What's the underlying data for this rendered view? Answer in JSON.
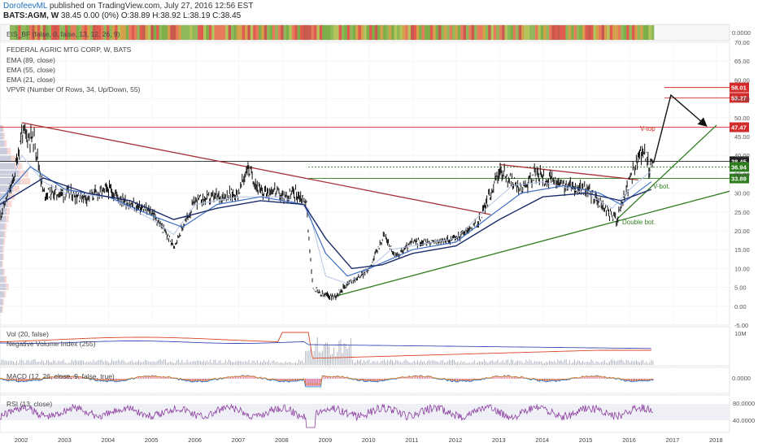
{
  "header": {
    "author": "DorofeevML",
    "published": "published on TradingView.com, July 27, 2016 12:56 EST",
    "symbol": "BATS:AGM, W",
    "quote": "38.45 0.00 (0%) O:38.89 H:38.92 L:38.19 C:38.45"
  },
  "panes": {
    "eis_label": "EIS_BF (false, 0, false, 13, 12, 26, 9)",
    "main_title": "FEDERAL AGRIC MTG CORP, W, BATS",
    "main_indicators": [
      "EMA (89, close)",
      "EMA (55, close)",
      "EMA (21, close)",
      "VPVR (Number Of Rows, 34, Up/Down, 55)"
    ],
    "vol_label": "Vol (20, false)",
    "nvi_label": "Negative Volume Index (255)",
    "macd_label": "MACD (12, 26, close, 9, false, true)",
    "rsi_label": "RSI (13, close)"
  },
  "annotations": {
    "v_top": "V-top",
    "v_bot": "V-bot.",
    "double_bot": "Double bot."
  },
  "chart_data": {
    "type": "line",
    "symbol": "BATS:AGM",
    "title": "FEDERAL AGRIC MTG CORP, W, BATS",
    "x_range": [
      2001.5,
      2018.3
    ],
    "years": [
      "2002",
      "2003",
      "2004",
      "2005",
      "2006",
      "2007",
      "2008",
      "2009",
      "2010",
      "2011",
      "2012",
      "2013",
      "2014",
      "2015",
      "2016",
      "2017",
      "2018"
    ],
    "ylim": [
      -5,
      70
    ],
    "yticks": [
      "70.00",
      "65.00",
      "60.00",
      "55.00",
      "50.00",
      "45.00",
      "40.00",
      "35.00",
      "30.00",
      "25.00",
      "20.00",
      "15.00",
      "10.00",
      "5.00",
      "0.00",
      "-5.00"
    ],
    "price": [
      [
        2001.5,
        24
      ],
      [
        2001.8,
        33
      ],
      [
        2002.0,
        46
      ],
      [
        2002.3,
        44
      ],
      [
        2002.5,
        30
      ],
      [
        2003.0,
        30
      ],
      [
        2003.5,
        29
      ],
      [
        2004.0,
        31
      ],
      [
        2004.5,
        27
      ],
      [
        2005.0,
        25
      ],
      [
        2005.5,
        16
      ],
      [
        2006.0,
        28
      ],
      [
        2006.5,
        29
      ],
      [
        2007.0,
        30
      ],
      [
        2007.2,
        37
      ],
      [
        2007.5,
        30
      ],
      [
        2007.8,
        31
      ],
      [
        2008.0,
        29
      ],
      [
        2008.3,
        30
      ],
      [
        2008.55,
        28
      ],
      [
        2008.7,
        5
      ],
      [
        2008.9,
        3
      ],
      [
        2009.2,
        2.6
      ],
      [
        2009.5,
        6
      ],
      [
        2009.8,
        8
      ],
      [
        2010.0,
        10
      ],
      [
        2010.35,
        19
      ],
      [
        2010.6,
        13
      ],
      [
        2011.0,
        17
      ],
      [
        2011.5,
        17
      ],
      [
        2012.0,
        18
      ],
      [
        2012.5,
        22
      ],
      [
        2012.8,
        30
      ],
      [
        2013.0,
        36
      ],
      [
        2013.2,
        34
      ],
      [
        2013.5,
        31
      ],
      [
        2013.8,
        35
      ],
      [
        2014.0,
        34
      ],
      [
        2014.5,
        32
      ],
      [
        2015.0,
        31
      ],
      [
        2015.5,
        25
      ],
      [
        2015.7,
        23
      ],
      [
        2015.9,
        30
      ],
      [
        2016.1,
        36
      ],
      [
        2016.3,
        42
      ],
      [
        2016.45,
        37
      ],
      [
        2016.55,
        38.45
      ]
    ],
    "ema21": [
      [
        2001.5,
        26
      ],
      [
        2002.0,
        40
      ],
      [
        2002.5,
        33
      ],
      [
        2003.0,
        30
      ],
      [
        2004.0,
        29
      ],
      [
        2005.0,
        23
      ],
      [
        2005.5,
        19
      ],
      [
        2006.0,
        27
      ],
      [
        2007.0,
        29
      ],
      [
        2008.0,
        29
      ],
      [
        2008.6,
        26
      ],
      [
        2009.0,
        8
      ],
      [
        2009.5,
        6
      ],
      [
        2010.0,
        10
      ],
      [
        2010.5,
        15
      ],
      [
        2011.0,
        16
      ],
      [
        2012.0,
        18
      ],
      [
        2012.8,
        27
      ],
      [
        2013.3,
        32
      ],
      [
        2014.0,
        33
      ],
      [
        2015.0,
        30
      ],
      [
        2015.6,
        26
      ],
      [
        2016.0,
        31
      ],
      [
        2016.5,
        36
      ]
    ],
    "ema55": [
      [
        2001.5,
        28
      ],
      [
        2002.2,
        37
      ],
      [
        2003.0,
        31
      ],
      [
        2004.0,
        29
      ],
      [
        2005.0,
        24
      ],
      [
        2005.7,
        21
      ],
      [
        2006.5,
        27
      ],
      [
        2007.5,
        29
      ],
      [
        2008.5,
        27
      ],
      [
        2009.0,
        14
      ],
      [
        2009.5,
        8
      ],
      [
        2010.0,
        10
      ],
      [
        2011.0,
        15
      ],
      [
        2012.0,
        17
      ],
      [
        2012.8,
        24
      ],
      [
        2013.5,
        30
      ],
      [
        2014.5,
        32
      ],
      [
        2015.3,
        30
      ],
      [
        2015.8,
        27
      ],
      [
        2016.5,
        33
      ]
    ],
    "ema89": [
      [
        2001.5,
        27
      ],
      [
        2002.5,
        34
      ],
      [
        2003.5,
        30
      ],
      [
        2004.5,
        28
      ],
      [
        2005.5,
        23
      ],
      [
        2006.5,
        26
      ],
      [
        2007.5,
        28
      ],
      [
        2008.5,
        27
      ],
      [
        2009.0,
        18
      ],
      [
        2009.6,
        10
      ],
      [
        2010.3,
        11
      ],
      [
        2011.0,
        14
      ],
      [
        2012.0,
        16
      ],
      [
        2013.0,
        23
      ],
      [
        2014.0,
        29
      ],
      [
        2015.0,
        30
      ],
      [
        2015.8,
        28
      ],
      [
        2016.5,
        31
      ]
    ],
    "trendlines": [
      {
        "color": "#a8323a",
        "from": [
          2002.0,
          48.7
        ],
        "to": [
          2012.8,
          24.3
        ]
      },
      {
        "color": "#2e7d1e",
        "from": [
          2009.2,
          2.6
        ],
        "to": [
          2018.3,
          30.5
        ]
      },
      {
        "color": "#2e7d1e",
        "from": [
          2015.7,
          23
        ],
        "to": [
          2018.0,
          48
        ]
      },
      {
        "color": "#a8323a",
        "from": [
          2013.0,
          37.6
        ],
        "to": [
          2016.2,
          33.5
        ]
      }
    ],
    "horizontal_levels": [
      {
        "value": 47.47,
        "label": "47.47",
        "color": "#d22b2b"
      },
      {
        "value": 55.27,
        "label": "55.27",
        "color": "#d22b2b"
      },
      {
        "value": 58.01,
        "label": "58.01",
        "color": "#d22b2b"
      },
      {
        "value": 38.45,
        "label": "38.45",
        "color": "#222222"
      },
      {
        "value": 36.94,
        "label": "36.94",
        "color": "#2e7d1e"
      },
      {
        "value": 33.89,
        "label": "33.89",
        "color": "#2e7d1e"
      }
    ],
    "projection": [
      [
        2016.55,
        38
      ],
      [
        2016.95,
        56
      ],
      [
        2017.75,
        48
      ]
    ],
    "macd_ylim": [
      "0.0000"
    ],
    "rsi_levels": [
      "80.0000",
      "40.0000"
    ],
    "vol_tick": "10M",
    "eis_tick": "0.0000"
  }
}
